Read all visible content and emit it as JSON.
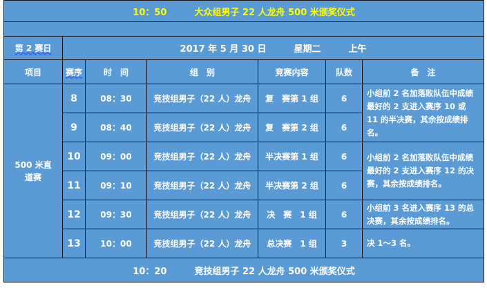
{
  "top_banner": {
    "time": "10：50",
    "event": "大众组男子 22 人龙舟 500 米颁奖仪式"
  },
  "day_row": {
    "day": "第 2 赛日",
    "date": "2017 年 5 月 30 日",
    "weekday": "星期二",
    "period": "上午"
  },
  "headers": [
    "项目",
    "赛序",
    "时　间",
    "组　别",
    "竞赛内容",
    "队数",
    "备　注"
  ],
  "event_name": "500 米直道赛",
  "rows": [
    {
      "seq": "8",
      "time": "08：30",
      "group": "竞技组男子（22 人）龙舟",
      "content": "复　赛第 1 组",
      "teams": "6"
    },
    {
      "seq": "9",
      "time": "08：40",
      "group": "竞技组男子（22 人）龙舟",
      "content": "复　赛第 2 组",
      "teams": "6"
    },
    {
      "seq": "10",
      "time": "09：00",
      "group": "竞技组男子（22 人）龙舟",
      "content": "半决赛第 1 组",
      "teams": "6"
    },
    {
      "seq": "11",
      "time": "09：10",
      "group": "竞技组男子（22 人）龙舟",
      "content": "半决赛第 2 组",
      "teams": "6"
    },
    {
      "seq": "12",
      "time": "09：30",
      "group": "竞技组男子（22 人）龙舟",
      "content": "决　赛　1 组",
      "teams": "6"
    },
    {
      "seq": "13",
      "time": "10：00",
      "group": "竞技组男子（22 人）龙舟",
      "content": "总决赛　1 组",
      "teams": "3"
    }
  ],
  "notes": [
    "小组前 2 名加落败队伍中成绩最好的 2 支进入赛序 10 或 11 的半决赛，其余按成绩排名。",
    "小组前 2 名加落败队伍中成绩最好的 2 支进入赛序 12 的决赛，其余按成绩排名。",
    "小组前 3 名进入赛序 13 的总决赛，其余按成绩排名。",
    "决 1～3 名。"
  ],
  "bottom_banner": {
    "time": "10：20",
    "event": "竞技组男子 22 人龙舟 500 米颁奖仪式"
  },
  "colors": {
    "background": "#5b9bd5",
    "banner_text": "#ffff00",
    "text": "#ffffff"
  }
}
